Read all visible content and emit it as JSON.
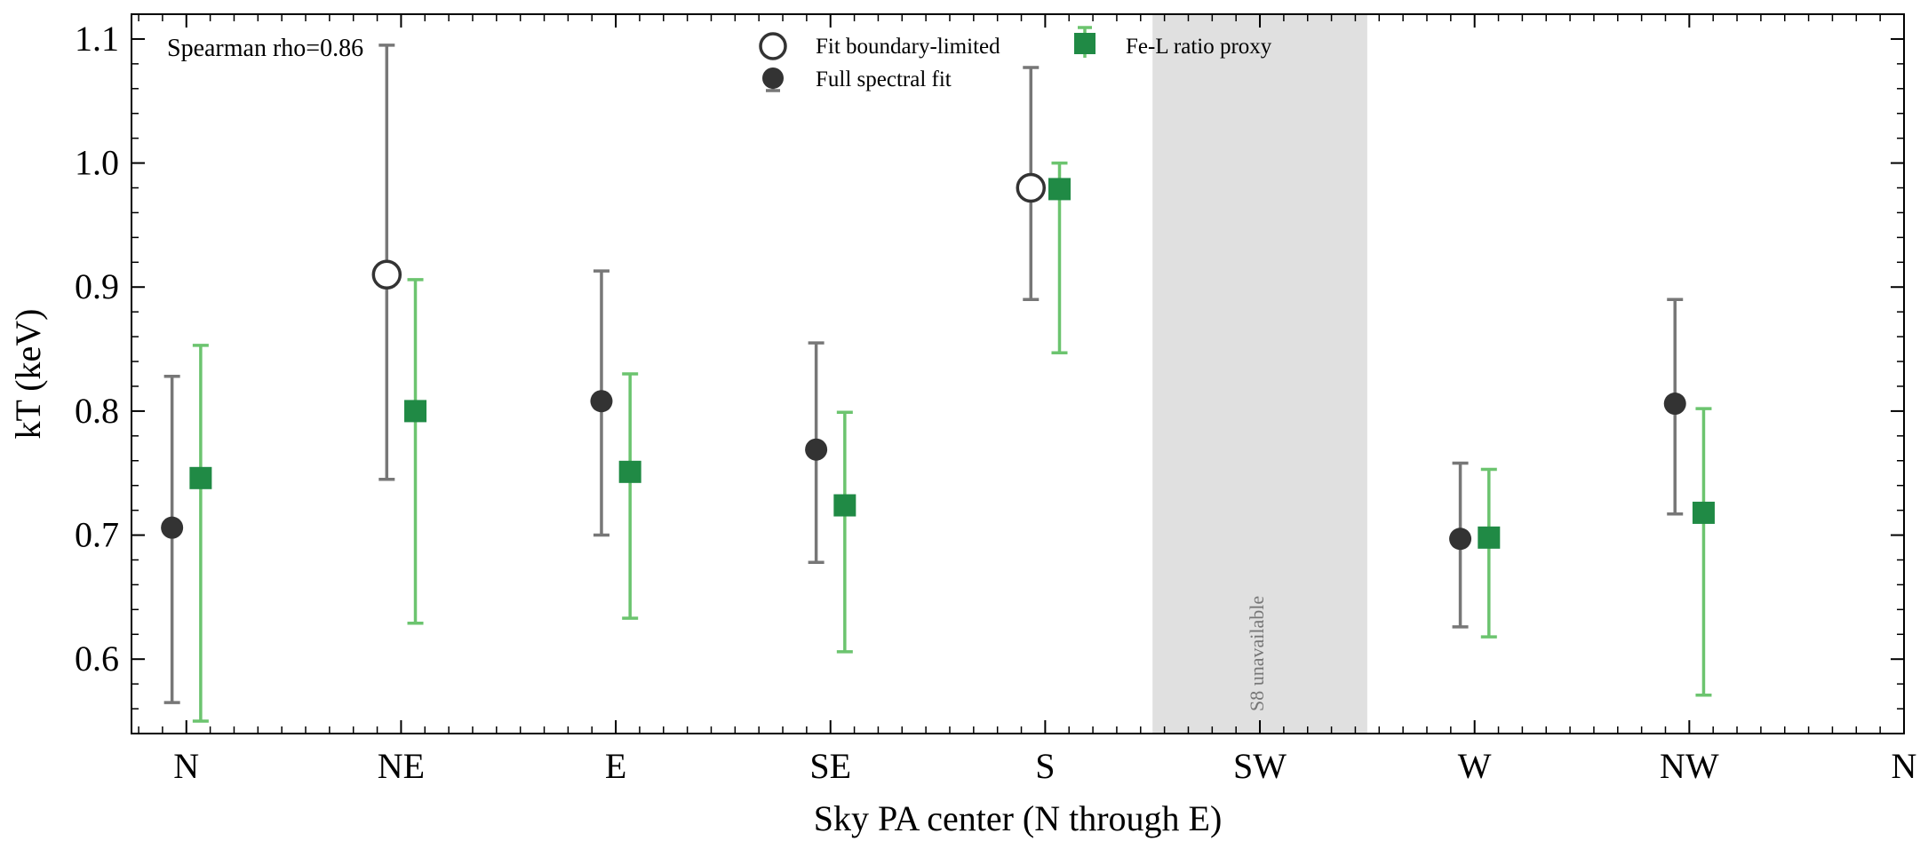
{
  "chart_data": {
    "type": "scatter",
    "xlabel": "Sky PA center (N through E)",
    "ylabel": "kT (keV)",
    "ylim": [
      0.54,
      1.12
    ],
    "yticks": [
      "0.6",
      "0.7",
      "0.8",
      "0.9",
      "1.0",
      "1.1"
    ],
    "ytick_values": [
      0.6,
      0.7,
      0.8,
      0.9,
      1.0,
      1.1
    ],
    "xticks": [
      "N",
      "NE",
      "E",
      "SE",
      "S",
      "SW",
      "W",
      "NW",
      "N"
    ],
    "xtick_values": [
      0,
      45,
      90,
      135,
      180,
      225,
      270,
      315,
      360
    ],
    "xlim": [
      -11.5,
      360
    ],
    "annotation": "Spearman rho=0.86",
    "unavailable_band": {
      "x0": 202.5,
      "x1": 247.5,
      "label": "S8 unavailable"
    },
    "legend": {
      "position": "top-center",
      "entries": [
        {
          "label": "Fit boundary-limited",
          "marker": "open-circle"
        },
        {
          "label": "Fe-L ratio proxy",
          "marker": "square"
        },
        {
          "label": "Full spectral fit",
          "marker": "filled-circle"
        }
      ]
    },
    "series": [
      {
        "name": "Full spectral fit",
        "color": "#333333",
        "errcolor": "#777777",
        "marker": "circle",
        "points": [
          {
            "x": -3,
            "y": 0.706,
            "lo": 0.565,
            "hi": 0.828,
            "boundary": false
          },
          {
            "x": 42,
            "y": 0.91,
            "lo": 0.745,
            "hi": 1.095,
            "boundary": true
          },
          {
            "x": 87,
            "y": 0.808,
            "lo": 0.7,
            "hi": 0.913,
            "boundary": false
          },
          {
            "x": 132,
            "y": 0.769,
            "lo": 0.678,
            "hi": 0.855,
            "boundary": false
          },
          {
            "x": 177,
            "y": 0.98,
            "lo": 0.89,
            "hi": 1.077,
            "boundary": true
          },
          {
            "x": 267,
            "y": 0.697,
            "lo": 0.626,
            "hi": 0.758,
            "boundary": false
          },
          {
            "x": 312,
            "y": 0.806,
            "lo": 0.717,
            "hi": 0.89,
            "boundary": false
          }
        ]
      },
      {
        "name": "Fe-L ratio proxy",
        "color": "#208a45",
        "errcolor": "#6cc46f",
        "marker": "square",
        "points": [
          {
            "x": 3,
            "y": 0.746,
            "lo": 0.55,
            "hi": 0.853
          },
          {
            "x": 48,
            "y": 0.8,
            "lo": 0.629,
            "hi": 0.906
          },
          {
            "x": 93,
            "y": 0.751,
            "lo": 0.633,
            "hi": 0.83
          },
          {
            "x": 138,
            "y": 0.724,
            "lo": 0.606,
            "hi": 0.799
          },
          {
            "x": 183,
            "y": 0.979,
            "lo": 0.847,
            "hi": 1.0
          },
          {
            "x": 273,
            "y": 0.698,
            "lo": 0.618,
            "hi": 0.753
          },
          {
            "x": 318,
            "y": 0.718,
            "lo": 0.571,
            "hi": 0.802
          }
        ]
      }
    ]
  }
}
